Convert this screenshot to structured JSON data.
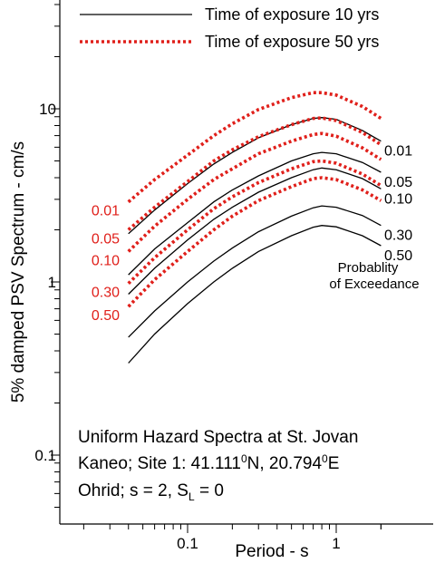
{
  "chart_data": {
    "type": "line",
    "title": "",
    "xlabel": "Period - s",
    "ylabel": "5% damped PSV Spectrum - cm/s",
    "xscale": "log",
    "yscale": "log",
    "xlim": [
      0.015,
      3
    ],
    "ylim": [
      0.05,
      30
    ],
    "x_tick_labels": [
      {
        "value": 0.1,
        "label": "0.1"
      },
      {
        "value": 1,
        "label": "1"
      }
    ],
    "y_tick_labels": [
      {
        "value": 0.1,
        "label": "0.1"
      },
      {
        "value": 1,
        "label": "1"
      },
      {
        "value": 10,
        "label": "10"
      }
    ],
    "grid": false,
    "legend_position": "top",
    "legend": [
      {
        "label": "Time of exposure 10 yrs",
        "style": "solid",
        "color": "#000000"
      },
      {
        "label": "Time of exposure 50 yrs",
        "style": "dotted",
        "color": "#e0201b"
      }
    ],
    "x": [
      0.04,
      0.06,
      0.1,
      0.15,
      0.2,
      0.3,
      0.5,
      0.7,
      0.8,
      1.0,
      1.5,
      2.0
    ],
    "series": [
      {
        "group": "10 yrs",
        "label": "0.01",
        "color": "#000000",
        "style": "solid",
        "values": [
          1.9,
          2.6,
          3.7,
          4.8,
          5.6,
          6.8,
          8.1,
          8.8,
          8.9,
          8.7,
          7.5,
          6.5
        ]
      },
      {
        "group": "10 yrs",
        "label": "0.05",
        "color": "#000000",
        "style": "solid",
        "values": [
          1.1,
          1.55,
          2.2,
          2.9,
          3.4,
          4.1,
          5.0,
          5.5,
          5.6,
          5.5,
          4.9,
          4.3
        ]
      },
      {
        "group": "10 yrs",
        "label": "0.10",
        "color": "#000000",
        "style": "solid",
        "values": [
          0.85,
          1.2,
          1.75,
          2.3,
          2.7,
          3.3,
          4.0,
          4.45,
          4.55,
          4.45,
          3.95,
          3.45
        ]
      },
      {
        "group": "10 yrs",
        "label": "0.30",
        "color": "#000000",
        "style": "solid",
        "values": [
          0.48,
          0.68,
          1.0,
          1.32,
          1.57,
          1.95,
          2.4,
          2.68,
          2.75,
          2.7,
          2.42,
          2.12
        ]
      },
      {
        "group": "10 yrs",
        "label": "0.50",
        "color": "#000000",
        "style": "solid",
        "values": [
          0.34,
          0.5,
          0.75,
          1.0,
          1.2,
          1.5,
          1.85,
          2.07,
          2.12,
          2.08,
          1.85,
          1.62
        ]
      },
      {
        "group": "50 yrs",
        "label": "0.01",
        "color": "#e0201b",
        "style": "dotted",
        "values": [
          2.9,
          3.9,
          5.4,
          7.0,
          8.2,
          9.9,
          11.6,
          12.4,
          12.4,
          12.0,
          10.3,
          8.8
        ]
      },
      {
        "group": "50 yrs",
        "label": "0.05",
        "color": "#e0201b",
        "style": "dotted",
        "values": [
          2.0,
          2.7,
          3.8,
          5.0,
          5.8,
          6.9,
          8.1,
          8.8,
          8.85,
          8.55,
          7.3,
          6.2
        ]
      },
      {
        "group": "50 yrs",
        "label": "0.10",
        "color": "#e0201b",
        "style": "dotted",
        "values": [
          1.5,
          2.1,
          3.0,
          3.9,
          4.5,
          5.5,
          6.5,
          7.1,
          7.2,
          6.95,
          5.95,
          5.1
        ]
      },
      {
        "group": "50 yrs",
        "label": "0.30",
        "color": "#e0201b",
        "style": "dotted",
        "values": [
          0.98,
          1.38,
          2.0,
          2.65,
          3.1,
          3.75,
          4.5,
          4.95,
          5.0,
          4.85,
          4.2,
          3.6
        ]
      },
      {
        "group": "50 yrs",
        "label": "0.50",
        "color": "#e0201b",
        "style": "dotted",
        "values": [
          0.72,
          1.03,
          1.5,
          2.0,
          2.4,
          2.95,
          3.55,
          3.95,
          4.0,
          3.9,
          3.4,
          2.95
        ]
      }
    ],
    "annotations": {
      "exceedance_label_line1": "Probablity",
      "exceedance_label_line2": "of Exceedance",
      "info_line1": "Uniform Hazard Spectra at St. Jovan",
      "info_line2_prefix": "Kaneo; Site 1: 41.111",
      "info_line2_sup1": "0",
      "info_line2_mid": "N, 20.794",
      "info_line2_sup2": "0",
      "info_line2_suffix": "E",
      "info_line3_prefix": "Ohrid; s = 2, S",
      "info_line3_sub": "L",
      "info_line3_suffix": " = 0"
    }
  }
}
